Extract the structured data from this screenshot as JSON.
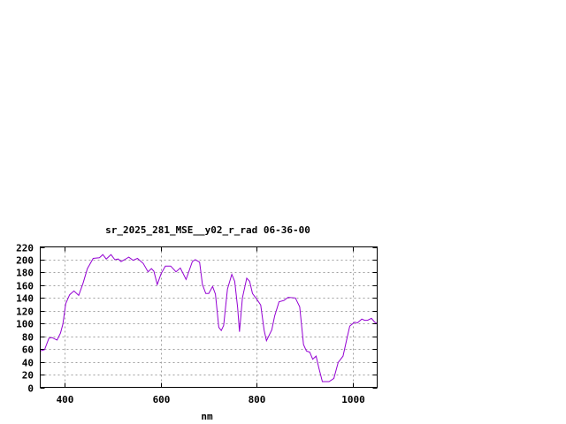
{
  "chart_data": {
    "type": "line",
    "title": "sr_2025_281_MSE__y02_r_rad 06-36-00",
    "xlabel": "nm",
    "ylabel": "",
    "xlim": [
      350,
      1050
    ],
    "ylim": [
      0,
      220
    ],
    "xticks": [
      400,
      600,
      800,
      1000
    ],
    "yticks": [
      0,
      20,
      40,
      60,
      80,
      100,
      120,
      140,
      160,
      180,
      200,
      220
    ],
    "grid": true,
    "line_color": "#9400d3",
    "series": [
      {
        "x": [
          350,
          359,
          368,
          374,
          385,
          392,
          397,
          403,
          411,
          420,
          430,
          439,
          448,
          460,
          473,
          480,
          487,
          497,
          505,
          512,
          518,
          525,
          534,
          543,
          552,
          564,
          574,
          581,
          586,
          593,
          601,
          610,
          621,
          632,
          641,
          653,
          666,
          672,
          681,
          687,
          694,
          700,
          708,
          714,
          721,
          726,
          731,
          739,
          748,
          754,
          760,
          764,
          770,
          779,
          785,
          791,
          800,
          808,
          815,
          820,
          831,
          837,
          846,
          856,
          865,
          880,
          889,
          897,
          903,
          910,
          916,
          923,
          929,
          936,
          950,
          960,
          969,
          979,
          987,
          993,
          1003,
          1009,
          1018,
          1024,
          1030,
          1038,
          1045,
          1050
        ],
        "y": [
          57,
          59,
          77,
          78,
          74,
          85,
          99,
          131,
          145,
          151,
          144,
          163,
          186,
          202,
          203,
          208,
          201,
          208,
          200,
          201,
          197,
          200,
          204,
          199,
          202,
          194,
          181,
          186,
          182,
          161,
          178,
          190,
          190,
          181,
          187,
          169,
          197,
          200,
          196,
          161,
          147,
          147,
          158,
          146,
          94,
          89,
          97,
          154,
          177,
          166,
          125,
          87,
          140,
          171,
          166,
          147,
          138,
          129,
          90,
          73,
          90,
          112,
          134,
          136,
          141,
          140,
          126,
          67,
          57,
          55,
          44,
          49,
          30,
          9,
          9,
          14,
          39,
          49,
          76,
          96,
          102,
          101,
          107,
          105,
          105,
          108,
          102,
          100
        ]
      }
    ]
  }
}
